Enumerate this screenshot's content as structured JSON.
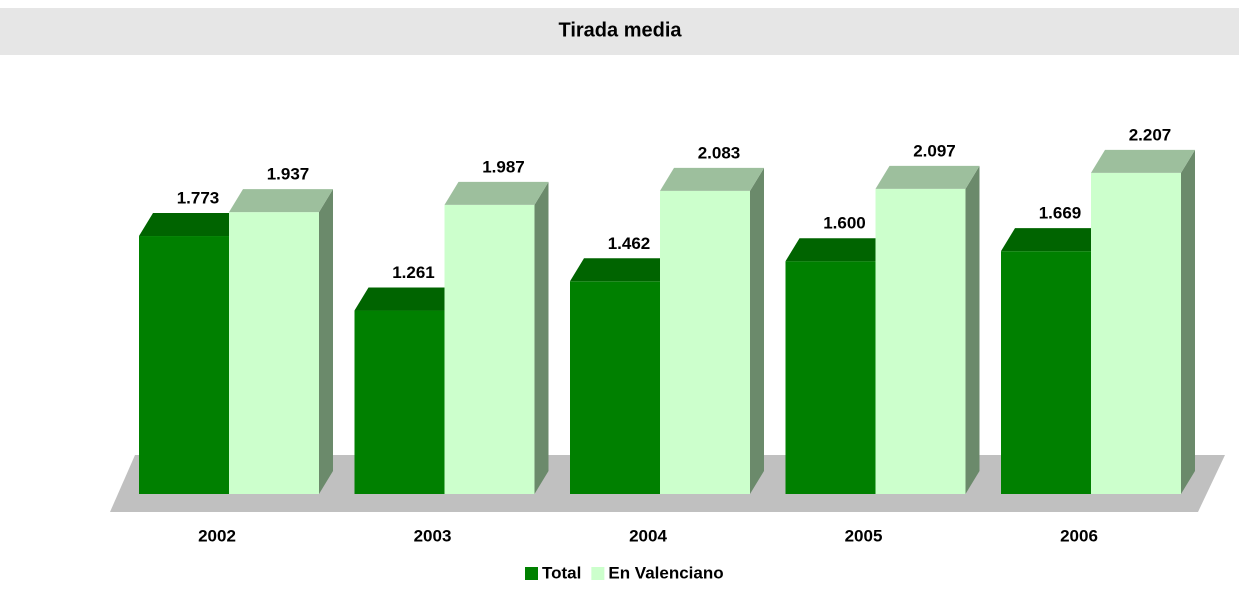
{
  "chart_data": {
    "type": "bar3d",
    "title": "Tirada media",
    "categories": [
      "2002",
      "2003",
      "2004",
      "2005",
      "2006"
    ],
    "series": [
      {
        "name": "Total",
        "color": "#008000",
        "values": [
          1773,
          1261,
          1462,
          1600,
          1669
        ],
        "value_labels": [
          "1.773",
          "1.261",
          "1.462",
          "1.600",
          "1.669"
        ]
      },
      {
        "name": "En Valenciano",
        "color": "#ccffcc",
        "values": [
          1937,
          1987,
          2083,
          2097,
          2207
        ],
        "value_labels": [
          "1.937",
          "1.987",
          "2.083",
          "2.097",
          "2.207"
        ]
      }
    ],
    "legend": "bottom"
  }
}
